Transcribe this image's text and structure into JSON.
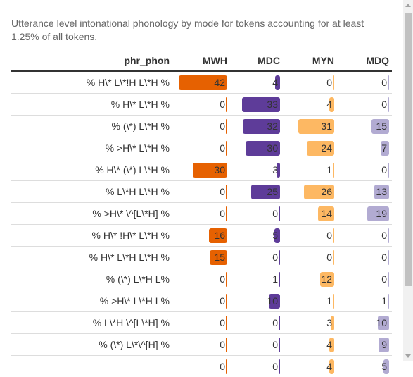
{
  "caption": "Utterance level intonational phonology by mode for tokens accounting for at least 1.25% of all tokens.",
  "chart_data": {
    "type": "table",
    "columns": [
      "phr_phon",
      "MWH",
      "MDC",
      "MYN",
      "MDQ"
    ],
    "series_colors": {
      "MWH": "#e66101",
      "MDC": "#5e3c99",
      "MYN": "#fdb863",
      "MDQ": "#b2abd2"
    },
    "max_value": 42,
    "rows": [
      {
        "label": "% H\\* L\\*!H L\\*H %",
        "values": [
          42,
          4,
          0,
          0
        ]
      },
      {
        "label": "% H\\* L\\*H %",
        "values": [
          0,
          33,
          4,
          0
        ]
      },
      {
        "label": "% (\\*) L\\*H %",
        "values": [
          0,
          32,
          31,
          15
        ]
      },
      {
        "label": "% >H\\* L\\*H %",
        "values": [
          0,
          30,
          24,
          7
        ]
      },
      {
        "label": "% H\\* (\\*) L\\*H %",
        "values": [
          30,
          3,
          1,
          0
        ]
      },
      {
        "label": "% L\\*H L\\*H %",
        "values": [
          0,
          25,
          26,
          13
        ]
      },
      {
        "label": "% >H\\* \\^[L\\*H] %",
        "values": [
          0,
          0,
          14,
          19
        ]
      },
      {
        "label": "% H\\* !H\\* L\\*H %",
        "values": [
          16,
          5,
          0,
          0
        ]
      },
      {
        "label": "% H\\* L\\*H L\\*H %",
        "values": [
          15,
          0,
          0,
          0
        ]
      },
      {
        "label": "% (\\*) L\\*H L%",
        "values": [
          0,
          1,
          12,
          0
        ]
      },
      {
        "label": "% >H\\* L\\*H L%",
        "values": [
          0,
          10,
          1,
          1
        ]
      },
      {
        "label": "% L\\*H \\^[L\\*H] %",
        "values": [
          0,
          0,
          3,
          10
        ]
      },
      {
        "label": "% (\\*) L\\*\\^[H] %",
        "values": [
          0,
          0,
          4,
          9
        ]
      },
      {
        "label": "",
        "values": [
          0,
          0,
          4,
          5
        ]
      }
    ]
  }
}
